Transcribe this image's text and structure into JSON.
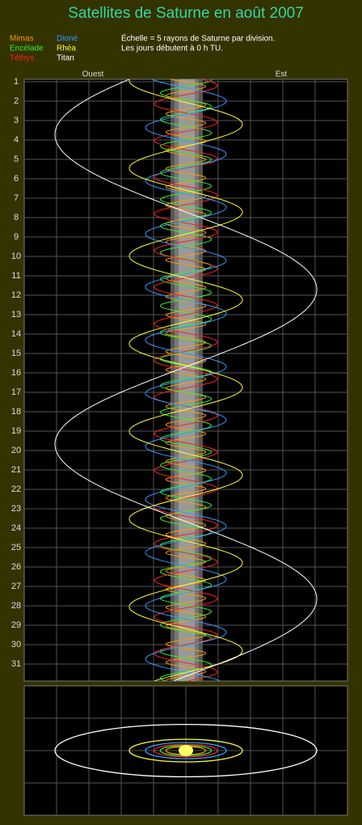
{
  "header": {
    "title": "Satellites de Saturne en août 2007"
  },
  "legend": [
    "Mimas",
    "Encélade",
    "Téthys",
    "Dioné",
    "Rhéa",
    "Titan"
  ],
  "notes": [
    "Échelle = 5 rayons de Saturne par division.",
    "Les jours débutent à 0 h TU."
  ],
  "directions": {
    "west": "Ouest",
    "east": "Est"
  },
  "days": [
    "1",
    "2",
    "3",
    "4",
    "5",
    "6",
    "7",
    "8",
    "9",
    "10",
    "11",
    "12",
    "13",
    "14",
    "15",
    "16",
    "17",
    "18",
    "19",
    "20",
    "21",
    "22",
    "23",
    "24",
    "25",
    "26",
    "27",
    "28",
    "29",
    "30",
    "31"
  ]
}
